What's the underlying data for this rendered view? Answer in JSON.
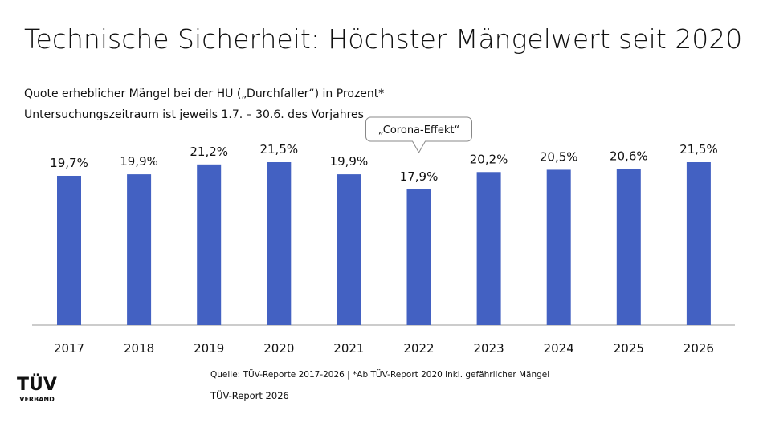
{
  "chart_data": {
    "type": "bar",
    "title": "Technische Sicherheit: Höchster Mängelwert seit 2020",
    "subtitle": "Quote erheblicher Mängel bei der HU („Durchfaller“) in Prozent*",
    "subtitle2": "Untersuchungszeitraum ist jeweils 1.7. – 30.6. des Vorjahres",
    "categories": [
      "2017",
      "2018",
      "2019",
      "2020",
      "2021",
      "2022",
      "2023",
      "2024",
      "2025",
      "2026"
    ],
    "values": [
      19.7,
      19.9,
      21.2,
      21.5,
      19.9,
      17.9,
      20.2,
      20.5,
      20.6,
      21.5
    ],
    "value_labels": [
      "19,7%",
      "19,9%",
      "21,2%",
      "21,5%",
      "19,9%",
      "17,9%",
      "20,2%",
      "20,5%",
      "20,6%",
      "21,5%"
    ],
    "color": "#4361c2",
    "annotation": {
      "text": "„Corona-Effekt“",
      "category": "2022"
    },
    "source": "Quelle: TÜV-Reporte 2017-2026 | *Ab TÜV-Report 2020 inkl. gefährlicher Mängel",
    "report": "TÜV-Report 2026",
    "logo": {
      "top": "TÜV",
      "bottom": "VERBAND"
    }
  }
}
